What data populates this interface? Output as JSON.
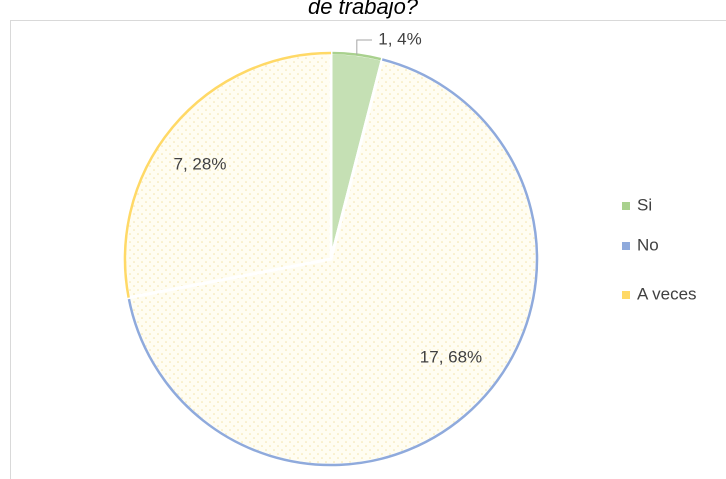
{
  "chart_data": {
    "type": "pie",
    "title": "de trabajo?",
    "categories": [
      "Si",
      "No",
      "A veces"
    ],
    "values": [
      1,
      17,
      7
    ],
    "value_labels": [
      "1, 4%",
      "17, 68%",
      "7, 28%"
    ],
    "colors": [
      "#a9d18e",
      "#8faadc",
      "#ffd966"
    ],
    "legend": "right"
  }
}
